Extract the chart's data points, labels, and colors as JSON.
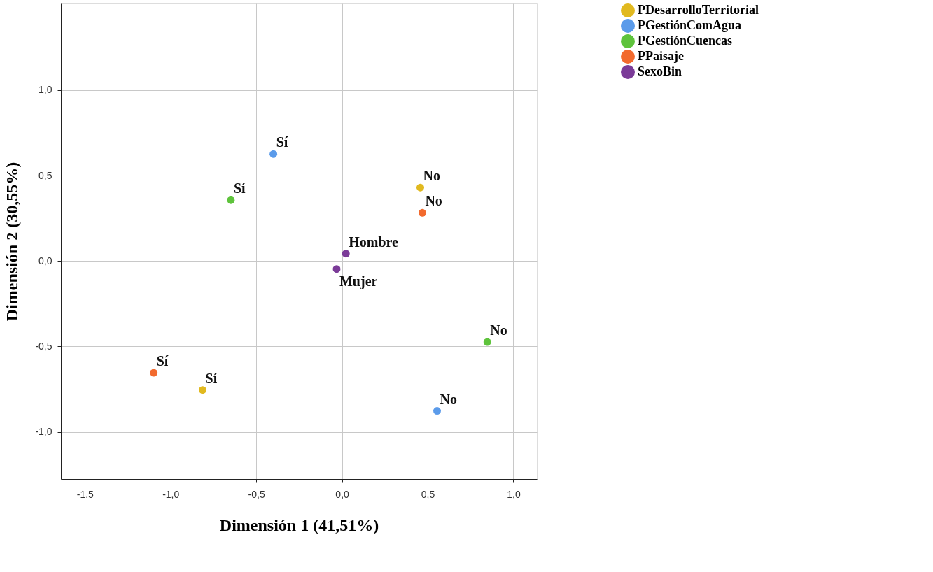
{
  "chart_data": {
    "type": "scatter",
    "xlabel": "Dimensión 1 (41,51%)",
    "ylabel": "Dimensión 2 (30,55%)",
    "series": [
      {
        "name": "PDesarrolloTerritorial",
        "color": "#e1b91f",
        "x": [
          0.457,
          -0.813
        ],
        "values": [
          0.43,
          -0.755
        ]
      },
      {
        "name": "PGestiónComAgua",
        "color": "#5b9bea",
        "x": [
          -0.4,
          0.555
        ],
        "values": [
          0.626,
          -0.877
        ]
      },
      {
        "name": "PGestiónCuencas",
        "color": "#5ec33c",
        "x": [
          -0.648,
          0.848
        ],
        "values": [
          0.356,
          -0.474
        ]
      },
      {
        "name": "PPaisaje",
        "color": "#f26a2e",
        "x": [
          0.469,
          -1.098
        ],
        "values": [
          0.282,
          -0.654
        ]
      },
      {
        "name": "SexoBin",
        "color": "#7b3b98",
        "x": [
          0.023,
          -0.031
        ],
        "values": [
          0.043,
          -0.047
        ]
      }
    ],
    "annotations": [
      {
        "text": "No",
        "x": 0.457,
        "y": 0.43
      },
      {
        "text": "Sí",
        "x": -0.813,
        "y": -0.755
      },
      {
        "text": "Sí",
        "x": -0.4,
        "y": 0.626
      },
      {
        "text": "No",
        "x": 0.555,
        "y": -0.877
      },
      {
        "text": "Sí",
        "x": -0.648,
        "y": 0.356
      },
      {
        "text": "No",
        "x": 0.848,
        "y": -0.474
      },
      {
        "text": "No",
        "x": 0.469,
        "y": 0.282
      },
      {
        "text": "Sí",
        "x": -1.098,
        "y": -0.654
      },
      {
        "text": "Hombre",
        "x": 0.023,
        "y": 0.043
      },
      {
        "text": "Mujer",
        "x": -0.031,
        "y": -0.047
      }
    ],
    "xlim": [
      -1.64,
      1.137
    ],
    "ylim": [
      -1.276,
      1.507
    ],
    "xticks": [
      {
        "value": -1.5,
        "label": "-1,5"
      },
      {
        "value": -1.0,
        "label": "-1,0"
      },
      {
        "value": -0.5,
        "label": "-0,5"
      },
      {
        "value": 0.0,
        "label": "0,0"
      },
      {
        "value": 0.5,
        "label": "0,5"
      },
      {
        "value": 1.0,
        "label": "1,0"
      }
    ],
    "yticks": [
      {
        "value": -1.0,
        "label": "-1,0"
      },
      {
        "value": -0.5,
        "label": "-0,5"
      },
      {
        "value": 0.0,
        "label": "0,0"
      },
      {
        "value": 0.5,
        "label": "0,5"
      },
      {
        "value": 1.0,
        "label": "1,0"
      }
    ],
    "grid": true,
    "legend": "top right",
    "marker": "circle"
  }
}
